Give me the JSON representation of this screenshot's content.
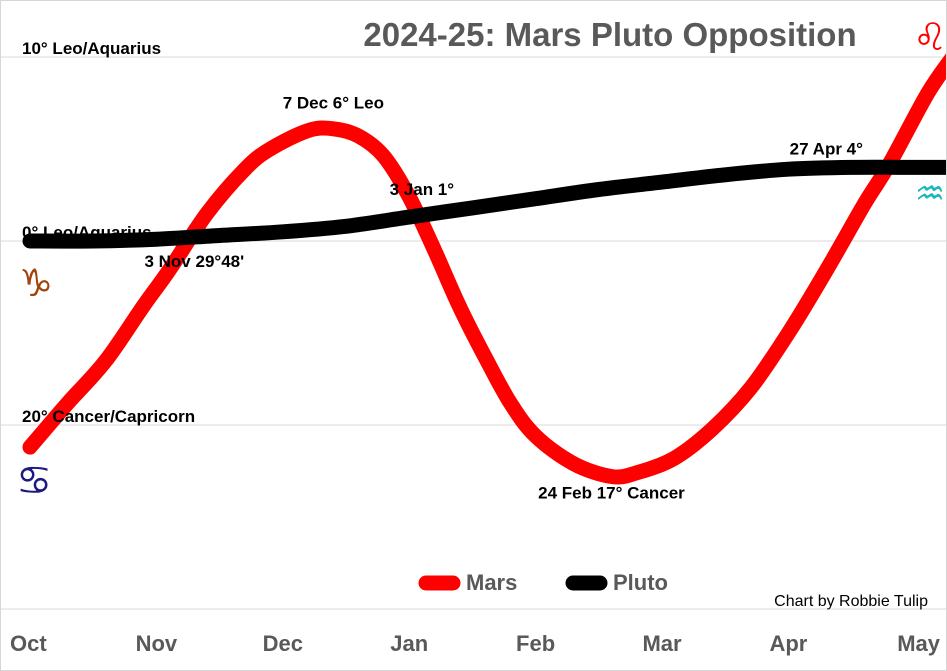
{
  "chart_data": {
    "type": "line",
    "title": "2024-25: Mars Pluto Opposition",
    "credit": "Chart by Robbie Tulip",
    "x_ticks": [
      "Oct",
      "Nov",
      "Dec",
      "Jan",
      "Feb",
      "Mar",
      "Apr",
      "May"
    ],
    "y_ticks": [
      {
        "value": 10,
        "label": "10° Leo/Aquarius"
      },
      {
        "value": 0,
        "label": "0° Leo/Aquarius"
      },
      {
        "value": -10,
        "label": "20° Cancer/Capricorn"
      }
    ],
    "ylim": [
      -20,
      10.5
    ],
    "grid": "horizontal",
    "legend_position": "bottom",
    "series": [
      {
        "name": "Mars",
        "color": "#ff0000",
        "points": [
          [
            0.0,
            -11.2
          ],
          [
            0.3,
            -8.8
          ],
          [
            0.6,
            -6.5
          ],
          [
            0.9,
            -3.5
          ],
          [
            1.1,
            -1.6
          ],
          [
            1.4,
            1.5
          ],
          [
            1.7,
            3.9
          ],
          [
            1.9,
            5.0
          ],
          [
            2.2,
            6.0
          ],
          [
            2.4,
            6.1
          ],
          [
            2.6,
            5.7
          ],
          [
            2.8,
            4.6
          ],
          [
            3.0,
            2.4
          ],
          [
            3.2,
            -0.5
          ],
          [
            3.4,
            -3.6
          ],
          [
            3.6,
            -6.3
          ],
          [
            3.8,
            -8.8
          ],
          [
            4.0,
            -10.6
          ],
          [
            4.3,
            -12.1
          ],
          [
            4.6,
            -12.8
          ],
          [
            4.8,
            -12.6
          ],
          [
            5.1,
            -11.8
          ],
          [
            5.4,
            -10.2
          ],
          [
            5.7,
            -8.0
          ],
          [
            6.0,
            -5.0
          ],
          [
            6.3,
            -1.6
          ],
          [
            6.6,
            2.0
          ],
          [
            6.8,
            4.2
          ],
          [
            7.1,
            8.0
          ],
          [
            7.3,
            10.0
          ]
        ]
      },
      {
        "name": "Pluto",
        "color": "#000000",
        "points": [
          [
            0.0,
            0.0
          ],
          [
            0.5,
            0.0
          ],
          [
            1.0,
            0.1
          ],
          [
            1.5,
            0.3
          ],
          [
            2.0,
            0.5
          ],
          [
            2.5,
            0.8
          ],
          [
            3.0,
            1.3
          ],
          [
            3.5,
            1.8
          ],
          [
            4.0,
            2.3
          ],
          [
            4.5,
            2.8
          ],
          [
            5.0,
            3.2
          ],
          [
            5.5,
            3.6
          ],
          [
            6.0,
            3.9
          ],
          [
            6.5,
            4.0
          ],
          [
            7.0,
            4.0
          ],
          [
            7.3,
            4.0
          ]
        ]
      }
    ],
    "annotations": [
      {
        "text": "7 Dec 6° Leo",
        "x": 2.4,
        "y": 7.2
      },
      {
        "text": "3 Jan 1°",
        "x": 3.1,
        "y": 2.5
      },
      {
        "text": "3 Nov 29°48'",
        "x": 1.3,
        "y": -1.4
      },
      {
        "text": "27 Apr 4°",
        "x": 6.3,
        "y": 4.7
      },
      {
        "text": "24 Feb 17° Cancer",
        "x": 4.6,
        "y": -14.0
      }
    ],
    "glyphs": [
      {
        "name": "leo-glyph",
        "symbol": "♌",
        "color": "#ff0000"
      },
      {
        "name": "aquarius-glyph",
        "symbol": "♒",
        "color": "#1ab7b7"
      },
      {
        "name": "capricorn-glyph",
        "symbol": "♑",
        "color": "#a0440c"
      },
      {
        "name": "cancer-glyph",
        "symbol": "♋",
        "color": "#1a1a80"
      }
    ]
  }
}
